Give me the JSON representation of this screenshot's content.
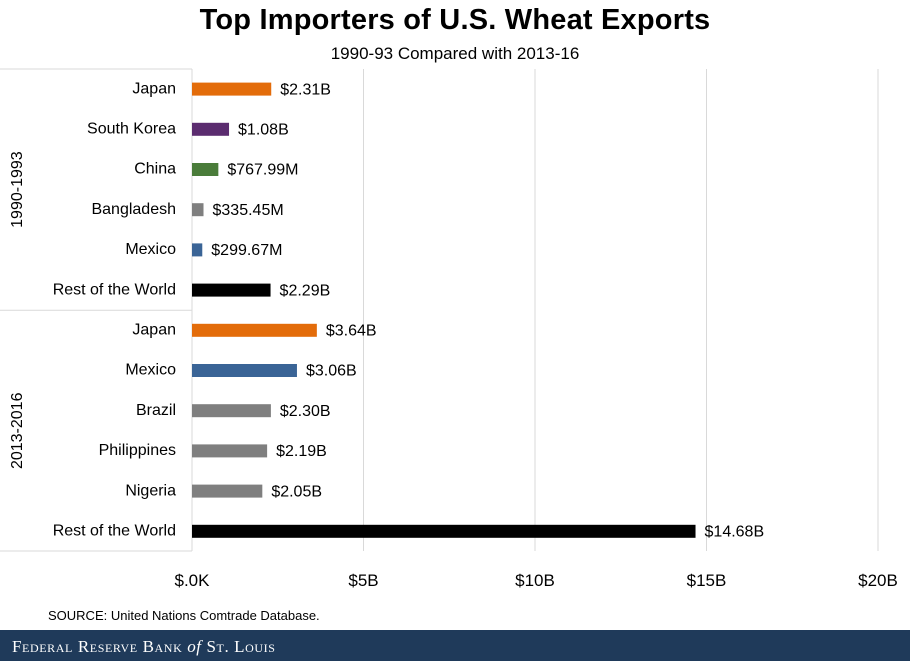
{
  "chart_data": {
    "type": "bar",
    "orientation": "horizontal",
    "title": "Top Importers of U.S. Wheat Exports",
    "subtitle": "1990-93 Compared with 2013-16",
    "groups": [
      {
        "label": "1990-1993",
        "bars": [
          {
            "category": "Japan",
            "value": 2.31,
            "label": "$2.31B",
            "color": "#e36c0a"
          },
          {
            "category": "South Korea",
            "value": 1.08,
            "label": "$1.08B",
            "color": "#5b2c6f"
          },
          {
            "category": "China",
            "value": 0.76799,
            "label": "$767.99M",
            "color": "#4a7c3a"
          },
          {
            "category": "Bangladesh",
            "value": 0.33545,
            "label": "$335.45M",
            "color": "#7f7f7f"
          },
          {
            "category": "Mexico",
            "value": 0.29967,
            "label": "$299.67M",
            "color": "#3a6496"
          },
          {
            "category": "Rest of the World",
            "value": 2.29,
            "label": "$2.29B",
            "color": "#000000"
          }
        ]
      },
      {
        "label": "2013-2016",
        "bars": [
          {
            "category": "Japan",
            "value": 3.64,
            "label": "$3.64B",
            "color": "#e36c0a"
          },
          {
            "category": "Mexico",
            "value": 3.06,
            "label": "$3.06B",
            "color": "#3a6496"
          },
          {
            "category": "Brazil",
            "value": 2.3,
            "label": "$2.30B",
            "color": "#7f7f7f"
          },
          {
            "category": "Philippines",
            "value": 2.19,
            "label": "$2.19B",
            "color": "#7f7f7f"
          },
          {
            "category": "Nigeria",
            "value": 2.05,
            "label": "$2.05B",
            "color": "#7f7f7f"
          },
          {
            "category": "Rest of the World",
            "value": 14.68,
            "label": "$14.68B",
            "color": "#000000"
          }
        ]
      }
    ],
    "xlim": [
      0,
      20
    ],
    "xticks": [
      {
        "value": 0,
        "label": "$.0K"
      },
      {
        "value": 5,
        "label": "$5B"
      },
      {
        "value": 10,
        "label": "$10B"
      },
      {
        "value": 15,
        "label": "$15B"
      },
      {
        "value": 20,
        "label": "$20B"
      }
    ],
    "grid": "vertical"
  },
  "source": "SOURCE: United Nations Comtrade Database.",
  "footer": {
    "part1": "Federal Reserve Bank ",
    "of": "of",
    "part2": " St. Louis"
  }
}
